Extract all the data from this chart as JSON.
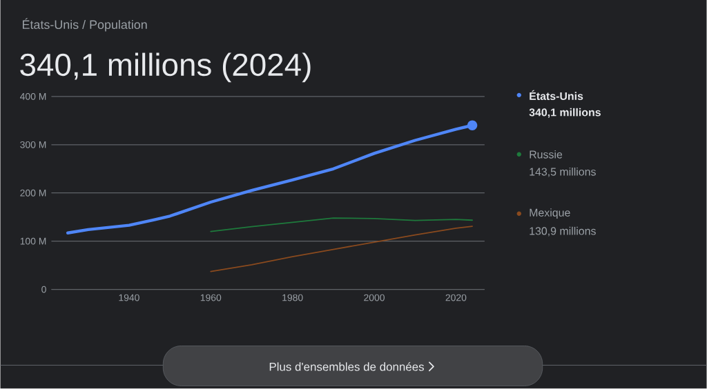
{
  "chart_data": {
    "type": "line",
    "subtitle": "États-Unis / Population",
    "title": "340,1 millions (2024)",
    "x": [
      1925,
      1930,
      1940,
      1946,
      1950,
      1960,
      1970,
      1980,
      1990,
      2000,
      2010,
      2020,
      2024
    ],
    "series": [
      {
        "name": "États-Unis",
        "color": "#4f86f7",
        "values": [
          117,
          124,
          133,
          144,
          152,
          181,
          205,
          227,
          250,
          282,
          309,
          332,
          340.1
        ]
      },
      {
        "name": "Russie",
        "color": "#1e7a3c",
        "x": [
          1960,
          1970,
          1980,
          1990,
          2000,
          2010,
          2020,
          2024
        ],
        "values": [
          120,
          130,
          139,
          148,
          147,
          143,
          145,
          143.5
        ]
      },
      {
        "name": "Mexique",
        "color": "#8a4a1e",
        "x": [
          1960,
          1970,
          1980,
          1990,
          2000,
          2010,
          2020,
          2024
        ],
        "values": [
          37,
          51,
          68,
          83,
          98,
          113,
          127,
          130.9
        ]
      }
    ],
    "annotations": [
      "340,1 millions",
      "143,5 millions",
      "130,9 millions",
      "Plus d'ensembles de données"
    ],
    "xlim": [
      1921,
      2027
    ],
    "ylim": [
      0,
      400
    ],
    "xticks": [
      1940,
      1960,
      1980,
      2000,
      2020
    ],
    "yticks": [
      0,
      {
        "value": 100,
        "label": "100 M"
      },
      {
        "value": 200,
        "label": "200 M"
      },
      {
        "value": 300,
        "label": "300 M"
      },
      {
        "value": 400,
        "label": "400 M"
      }
    ],
    "grid": "y",
    "legend": "right"
  }
}
